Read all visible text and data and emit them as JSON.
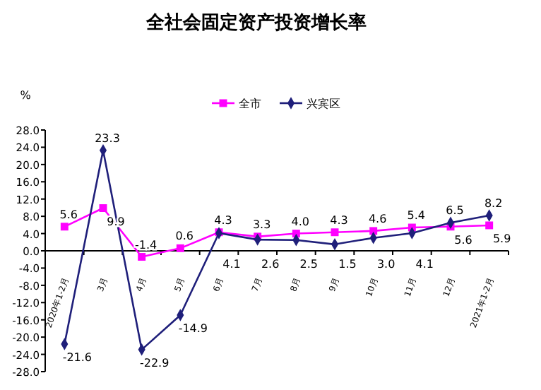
{
  "chart_data": {
    "type": "line",
    "title": "全社会固定资产投资增长率",
    "ylabel": "%",
    "categories": [
      "2020年1-2月",
      "3月",
      "4月",
      "5月",
      "6月",
      "7月",
      "8月",
      "9月",
      "10月",
      "11月",
      "12月",
      "2021年1-2月"
    ],
    "series": [
      {
        "name": "全市",
        "color": "#ff00ff",
        "marker": "square",
        "values": [
          5.6,
          9.9,
          -1.4,
          0.6,
          4.3,
          3.3,
          4.0,
          4.3,
          4.6,
          5.4,
          5.6,
          5.9
        ],
        "value_labels": [
          "5.6",
          "9.9",
          "-1.4",
          "0.6",
          "4.3",
          "3.3",
          "4.0",
          "4.3",
          "4.6",
          "5.4",
          "5.6",
          "5.9"
        ]
      },
      {
        "name": "兴宾区",
        "color": "#1f1f7a",
        "marker": "diamond",
        "values": [
          -21.6,
          23.3,
          -22.9,
          -14.9,
          4.1,
          2.6,
          2.5,
          1.5,
          3.0,
          4.1,
          6.5,
          8.2
        ],
        "value_labels": [
          "-21.6",
          "23.3",
          "-22.9",
          "-14.9",
          "4.1",
          "2.6",
          "2.5",
          "1.5",
          "3.0",
          "4.1",
          "6.5",
          "8.2"
        ]
      }
    ],
    "ylim": [
      -28,
      28
    ],
    "yticks": [
      {
        "value": -28,
        "label": "-28.0"
      },
      {
        "value": -24,
        "label": "-24.0"
      },
      {
        "value": -20,
        "label": "-20.0"
      },
      {
        "value": -16,
        "label": "-16.0"
      },
      {
        "value": -12,
        "label": "-12.0"
      },
      {
        "value": -8,
        "label": "-8.0"
      },
      {
        "value": -4,
        "label": "-4.0"
      },
      {
        "value": 0,
        "label": "0.0"
      },
      {
        "value": 4,
        "label": "4.0"
      },
      {
        "value": 8,
        "label": "8.0"
      },
      {
        "value": 12,
        "label": "12.0"
      },
      {
        "value": 16,
        "label": "16.0"
      },
      {
        "value": 20,
        "label": "20.0"
      },
      {
        "value": 24,
        "label": "24.0"
      },
      {
        "value": 28,
        "label": "28.0"
      }
    ],
    "legend": "top",
    "line_style": "solid"
  }
}
